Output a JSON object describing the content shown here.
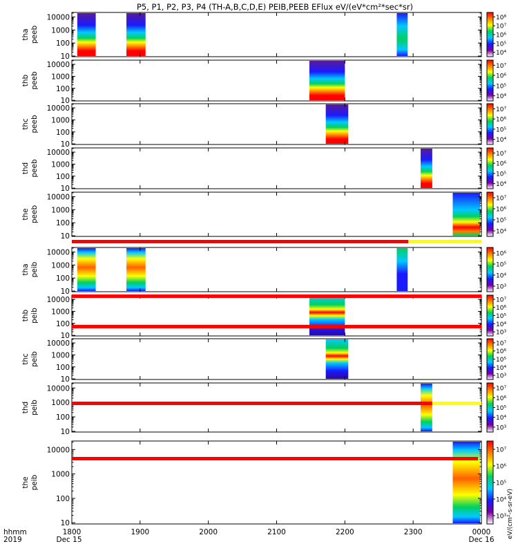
{
  "title": "P5, P1, P2, P3, P4 (TH-A,B,C,D,E) PEIB,PEEB EFlux eV/(eV*cm²*sec*sr)",
  "colorbar_label": "eV/(cm²-s-sr-eV)",
  "chart_data": {
    "type": "heatmap",
    "y_scale": "log",
    "y_ticks": [
      "10",
      "100",
      "1000",
      "10000"
    ],
    "x_ticks": [
      "1800",
      "1900",
      "2000",
      "2100",
      "2200",
      "2300",
      "0000"
    ],
    "x_range": [
      1800,
      2400
    ],
    "axis_time_label": "hhmm",
    "axis_year_label": "2019",
    "date_start": "Dec 15",
    "date_end": "Dec 16",
    "colorscale": [
      "#ffffff",
      "#7a00a0",
      "#1a1aff",
      "#00c8ff",
      "#00d060",
      "#ffff00",
      "#ff8000",
      "#ff0000"
    ],
    "panels": [
      {
        "label_line1": "tha",
        "label_line2": "peeb",
        "cbar_ticks": [
          "10⁴",
          "10⁵",
          "10⁶",
          "10⁷",
          "10⁸"
        ],
        "blocks": [
          {
            "x": [
              1808,
              1835
            ],
            "profile": "peeb_strong"
          },
          {
            "x": [
              1880,
              1908
            ],
            "profile": "peeb_strong"
          },
          {
            "x": [
              2276,
              2292
            ],
            "profile": "peeb_weak"
          }
        ]
      },
      {
        "label_line1": "thb",
        "label_line2": "peeb",
        "cbar_ticks": [
          "10⁴",
          "10⁵",
          "10⁶",
          "10⁷"
        ],
        "blocks": [
          {
            "x": [
              2148,
              2200
            ],
            "profile": "peeb_strong"
          }
        ]
      },
      {
        "label_line1": "thc",
        "label_line2": "peeb",
        "cbar_ticks": [
          "10⁴",
          "10⁵",
          "10⁶",
          "10⁷"
        ],
        "blocks": [
          {
            "x": [
              2172,
              2205
            ],
            "profile": "peeb_strong"
          }
        ]
      },
      {
        "label_line1": "thd",
        "label_line2": "peeb",
        "cbar_ticks": [
          "10⁴",
          "10⁵",
          "10⁶",
          "10⁷"
        ],
        "blocks": [
          {
            "x": [
              2311,
              2328
            ],
            "profile": "peeb_strong"
          }
        ]
      },
      {
        "label_line1": "the",
        "label_line2": "peeb",
        "cbar_ticks": [
          "10⁴",
          "10⁵",
          "10⁶",
          "10⁷"
        ],
        "blocks": [
          {
            "x": [
              2358,
              2398
            ],
            "profile": "peeb_mixed"
          }
        ]
      },
      {
        "label_line1": "tha",
        "label_line2": "peib",
        "cbar_ticks": [
          "10³",
          "10⁴",
          "10⁵",
          "10⁶"
        ],
        "blocks": [
          {
            "x": [
              1808,
              1835
            ],
            "profile": "peib_hot"
          },
          {
            "x": [
              1880,
              1908
            ],
            "profile": "peib_hot"
          },
          {
            "x": [
              2276,
              2292
            ],
            "profile": "peib_cool"
          }
        ]
      },
      {
        "label_line1": "thb",
        "label_line2": "peib",
        "cbar_ticks": [
          "10³",
          "10⁴",
          "10⁵",
          "10⁶",
          "10⁷"
        ],
        "blocks": [
          {
            "x": [
              2148,
              2200
            ],
            "profile": "peib_band"
          }
        ]
      },
      {
        "label_line1": "thc",
        "label_line2": "peib",
        "cbar_ticks": [
          "10³",
          "10⁴",
          "10⁵",
          "10⁶",
          "10⁷"
        ],
        "blocks": [
          {
            "x": [
              2172,
              2205
            ],
            "profile": "peib_band"
          }
        ]
      },
      {
        "label_line1": "thd",
        "label_line2": "peib",
        "cbar_ticks": [
          "10³",
          "10⁴",
          "10⁵",
          "10⁶",
          "10⁷"
        ],
        "blocks": [
          {
            "x": [
              2311,
              2328
            ],
            "profile": "peib_hot"
          }
        ]
      },
      {
        "label_line1": "the",
        "label_line2": "peib",
        "cbar_ticks": [
          "10³",
          "10⁴",
          "10⁵",
          "10⁶",
          "10⁷"
        ],
        "blocks": [
          {
            "x": [
              2358,
              2398
            ],
            "profile": "peib_hot"
          }
        ]
      }
    ],
    "mode_bars": [
      {
        "segments": [
          {
            "x": [
              1800,
              2293
            ],
            "color": "#ff0000"
          },
          {
            "x": [
              2293,
              2400
            ],
            "color": "#ffff00"
          }
        ]
      },
      {
        "segments": [
          {
            "x": [
              1800,
              2400
            ],
            "color": "#ff0000"
          }
        ]
      },
      {
        "segments": [
          {
            "x": [
              1800,
              2400
            ],
            "color": "#ff0000"
          }
        ]
      },
      {
        "segments": [
          {
            "x": [
              1800,
              2328
            ],
            "color": "#ff0000"
          },
          {
            "x": [
              2328,
              2400
            ],
            "color": "#ffff00"
          }
        ]
      },
      {
        "segments": [
          {
            "x": [
              1800,
              2395
            ],
            "color": "#ff0000"
          }
        ]
      }
    ]
  }
}
